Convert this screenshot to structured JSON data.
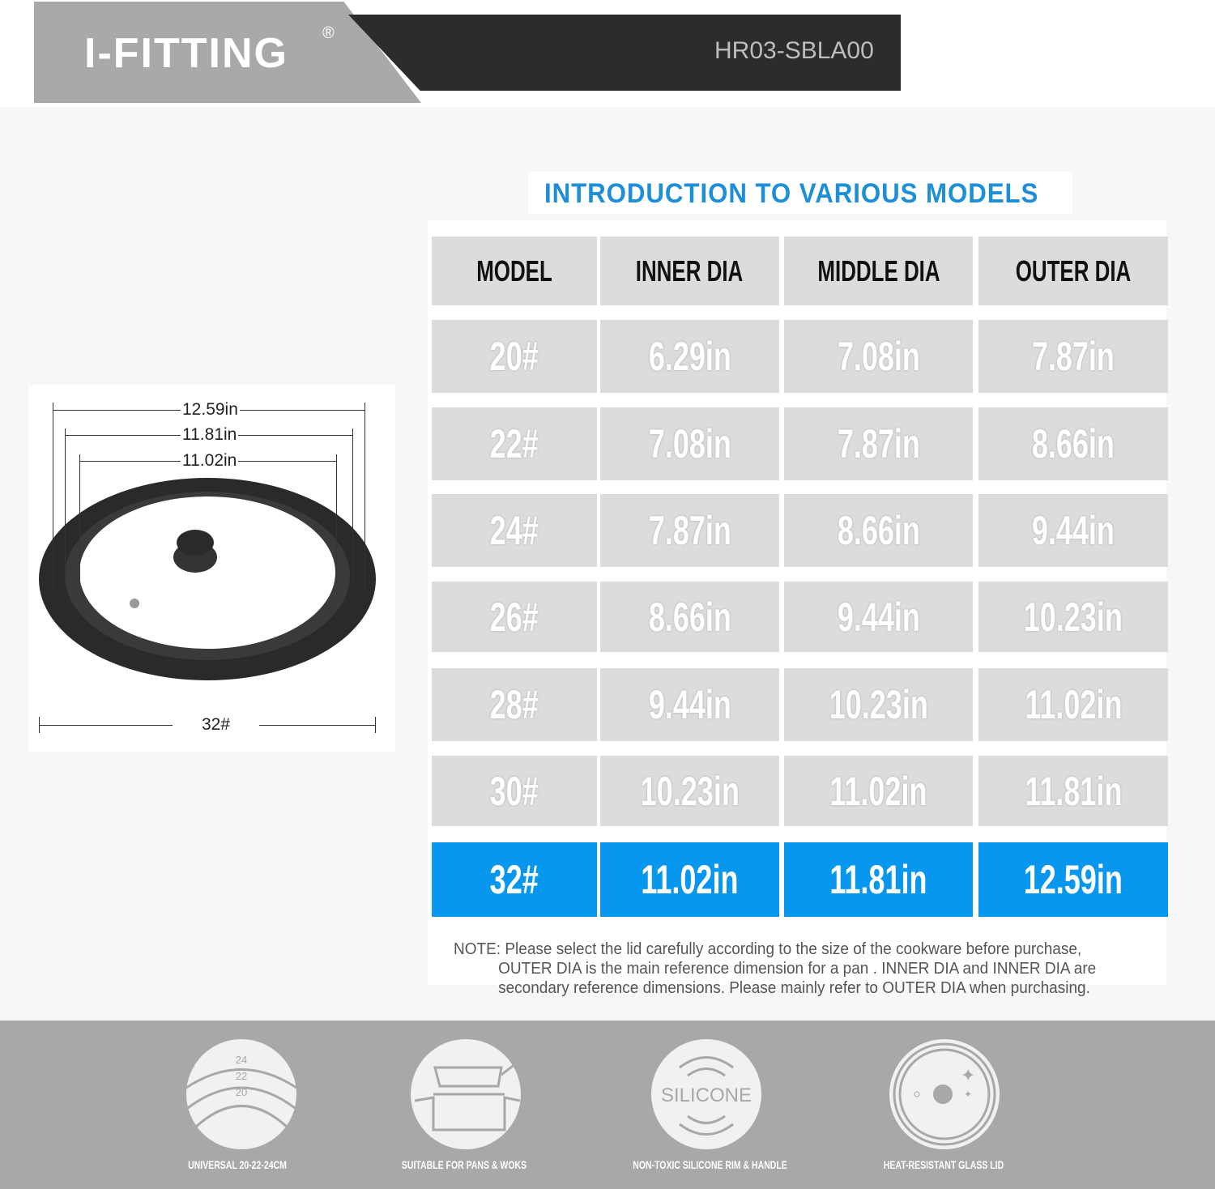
{
  "header": {
    "brand": "I-FITTING",
    "registered": "®",
    "model_code": "HR03-SBLA00"
  },
  "title": "INTRODUCTION TO VARIOUS MODELS",
  "table": {
    "columns": [
      "MODEL",
      "INNER DIA",
      "MIDDLE DIA",
      "OUTER DIA"
    ],
    "rows": [
      [
        "20#",
        "6.29in",
        "7.08in",
        "7.87in"
      ],
      [
        "22#",
        "7.08in",
        "7.87in",
        "8.66in"
      ],
      [
        "24#",
        "7.87in",
        "8.66in",
        "9.44in"
      ],
      [
        "26#",
        "8.66in",
        "9.44in",
        "10.23in"
      ],
      [
        "28#",
        "9.44in",
        "10.23in",
        "11.02in"
      ],
      [
        "30#",
        "10.23in",
        "11.02in",
        "11.81in"
      ],
      [
        "32#",
        "11.02in",
        "11.81in",
        "12.59in"
      ]
    ],
    "highlighted_row": "32#",
    "highlight_color": "#0797ef"
  },
  "note": {
    "label": "NOTE:",
    "line1": "Please  select the lid carefully according to the size of the cookware before purchase,",
    "line2": "OUTER DIA  is the main reference dimension for  a pan .  INNER DIA  and  INNER DIA  are",
    "line3": "secondary reference dimensions. Please mainly refer to OUTER DIA when purchasing."
  },
  "diagram": {
    "outer": "12.59in",
    "middle": "11.81in",
    "inner": "11.02in",
    "model": "32#"
  },
  "features": [
    {
      "icon": "size-rings-icon",
      "label": "UNIVERSAL 20-22-24CM",
      "ring_labels": [
        "24",
        "22",
        "20"
      ]
    },
    {
      "icon": "pan-pot-icon",
      "label": "SUITABLE FOR PANS & WOKS"
    },
    {
      "icon": "silicone-icon",
      "label": "NON-TOXIC SILICONE RIM & HANDLE",
      "icon_text": "SILICONE"
    },
    {
      "icon": "glass-lid-icon",
      "label": "HEAT-RESISTANT GLASS LID"
    }
  ]
}
